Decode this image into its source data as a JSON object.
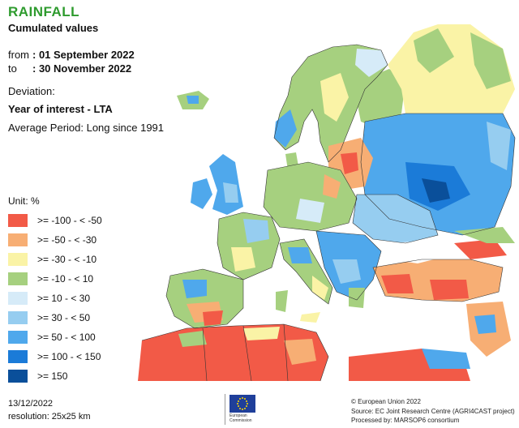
{
  "header": {
    "title": "RAINFALL",
    "subtitle": "Cumulated values",
    "from_label": "from",
    "from_value": ": 01 September 2022",
    "to_label": "to",
    "to_value": ": 30 November 2022",
    "deviation": "Deviation:",
    "year_of_interest": "Year of interest - LTA",
    "average_period": "Average Period: Long since 1991"
  },
  "legend": {
    "unit": "Unit:  %",
    "items": [
      {
        "label": ">= -100 - < -50",
        "color": "#f25a47"
      },
      {
        "label": ">= -50 - < -30",
        "color": "#f7ae74"
      },
      {
        "label": ">= -30 - < -10",
        "color": "#faf3a6"
      },
      {
        "label": ">= -10 - < 10",
        "color": "#a6d07f"
      },
      {
        "label": ">= 10 - < 30",
        "color": "#d6ebf8"
      },
      {
        "label": ">= 30 - < 50",
        "color": "#96cdf0"
      },
      {
        "label": ">= 50 - < 100",
        "color": "#4fa8ec"
      },
      {
        "label": ">= 100 - < 150",
        "color": "#1b7bd8"
      },
      {
        "label": ">= 150",
        "color": "#0a4f9a"
      }
    ]
  },
  "footer": {
    "date": "13/12/2022",
    "resolution": "resolution:  25x25 km",
    "copyright": "© European Union 2022",
    "source": "Source: EC Joint Research Centre (AGRI4CAST project)",
    "processed": "Processed by: MARSOP6 consortium",
    "eu_logo_text_1": "European",
    "eu_logo_text_2": "Commission"
  },
  "colors": {
    "sea": "#ffffff",
    "title_green": "#2e9b2e",
    "border": "#333333"
  }
}
